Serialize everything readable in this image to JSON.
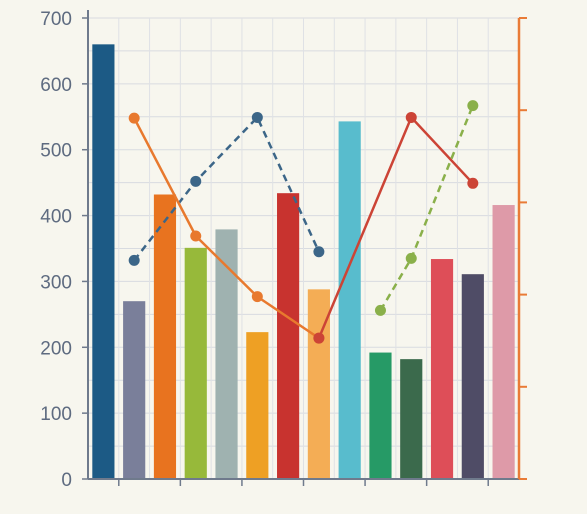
{
  "chart_data": {
    "type": "bar",
    "ylim": [
      0,
      700
    ],
    "yticks": [
      "0",
      "100",
      "200",
      "300",
      "400",
      "500",
      "600",
      "700"
    ],
    "grid": true,
    "bars": [
      {
        "value": 660,
        "color": "#1c5a85"
      },
      {
        "value": 270,
        "color": "#7a7f9a"
      },
      {
        "value": 432,
        "color": "#e8731f"
      },
      {
        "value": 351,
        "color": "#97b93a"
      },
      {
        "value": 379,
        "color": "#9fb2b0"
      },
      {
        "value": 223,
        "color": "#eea024"
      },
      {
        "value": 434,
        "color": "#c8332f"
      },
      {
        "value": 288,
        "color": "#f4ad55"
      },
      {
        "value": 543,
        "color": "#58bccd"
      },
      {
        "value": 192,
        "color": "#269a66"
      },
      {
        "value": 182,
        "color": "#3b6a4c"
      },
      {
        "value": 334,
        "color": "#de4e58"
      },
      {
        "value": 311,
        "color": "#4f4c66"
      },
      {
        "value": 416,
        "color": "#de9aa8"
      }
    ],
    "secondary_axis_color": "#e97b36",
    "lines": [
      {
        "style": "dashed",
        "color": "#3c6688",
        "points": [
          {
            "i": 1,
            "y": 332
          },
          {
            "i": 3,
            "y": 452
          },
          {
            "i": 5,
            "y": 549
          },
          {
            "i": 7,
            "y": 345
          }
        ]
      },
      {
        "style": "solid",
        "color": "#e8792e",
        "points": [
          {
            "i": 1,
            "y": 548
          },
          {
            "i": 3,
            "y": 369
          },
          {
            "i": 5,
            "y": 277
          },
          {
            "i": 7,
            "y": 214
          }
        ]
      },
      {
        "style": "solid",
        "color": "#cc4436",
        "points": [
          {
            "i": 7,
            "y": 214
          },
          {
            "i": 10,
            "y": 549
          },
          {
            "i": 12,
            "y": 449
          }
        ]
      },
      {
        "style": "dashed",
        "color": "#8ab04a",
        "points": [
          {
            "i": 9,
            "y": 256
          },
          {
            "i": 10,
            "y": 335
          },
          {
            "i": 12,
            "y": 567
          }
        ]
      }
    ]
  }
}
